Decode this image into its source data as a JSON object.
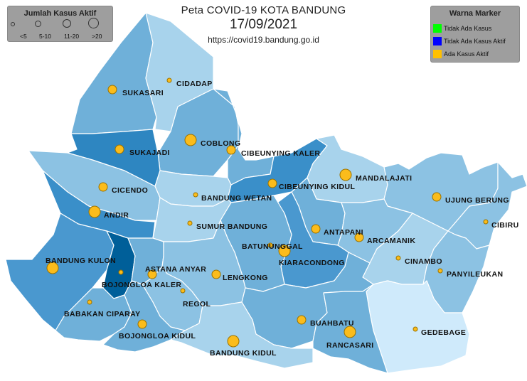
{
  "header": {
    "title": "Peta COVID-19 KOTA BANDUNG",
    "date": "17/09/2021",
    "url": "https://covid19.bandung.go.id"
  },
  "legend_size": {
    "title": "Jumlah Kasus Aktif",
    "items": [
      "<5",
      "5-10",
      "11-20",
      ">20"
    ]
  },
  "legend_color": {
    "title": "Warna Marker",
    "items": [
      {
        "label": "Tidak Ada Kasus",
        "color": "#00ff00"
      },
      {
        "label": "Tidak Ada Kasus Aktif",
        "color": "#0000ff"
      },
      {
        "label": "Ada Kasus Aktif",
        "color": "#ffc000"
      }
    ]
  },
  "colors": {
    "marker_fill": "#fbbc1b",
    "marker_stroke": "#9a7200",
    "map_border": "#ffffff"
  },
  "districts": [
    {
      "name": "SUKASARI",
      "size": "5-10"
    },
    {
      "name": "CIDADAP",
      "size": "<5"
    },
    {
      "name": "COBLONG",
      "size": "11-20"
    },
    {
      "name": "SUKAJADI",
      "size": "5-10"
    },
    {
      "name": "CIBEUNYING KALER",
      "size": "5-10"
    },
    {
      "name": "CICENDO",
      "size": "5-10"
    },
    {
      "name": "BANDUNG WETAN",
      "size": "<5"
    },
    {
      "name": "CIBEUNYING KIDUL",
      "size": "5-10"
    },
    {
      "name": "MANDALAJATI",
      "size": "11-20"
    },
    {
      "name": "ANDIR",
      "size": "11-20"
    },
    {
      "name": "SUMUR BANDUNG",
      "size": "<5"
    },
    {
      "name": "UJUNG BERUNG",
      "size": "5-10"
    },
    {
      "name": "CIBIRU",
      "size": "<5"
    },
    {
      "name": "ANTAPANI",
      "size": "5-10"
    },
    {
      "name": "ARCAMANIK",
      "size": "5-10"
    },
    {
      "name": "BATUNUNGGAL",
      "size": "<5"
    },
    {
      "name": "KIARACONDONG",
      "size": "11-20"
    },
    {
      "name": "BANDUNG KULON",
      "size": "11-20"
    },
    {
      "name": "ASTANA ANYAR",
      "size": "5-10"
    },
    {
      "name": "BOJONGLOA KALER",
      "size": "<5"
    },
    {
      "name": "LENGKONG",
      "size": "5-10"
    },
    {
      "name": "CINAMBO",
      "size": "<5"
    },
    {
      "name": "PANYILEUKAN",
      "size": "<5"
    },
    {
      "name": "REGOL",
      "size": "<5"
    },
    {
      "name": "BABAKAN CIPARAY",
      "size": "<5"
    },
    {
      "name": "BUAHBATU",
      "size": "5-10"
    },
    {
      "name": "BOJONGLOA KIDUL",
      "size": "5-10"
    },
    {
      "name": "GEDEBAGE",
      "size": "<5"
    },
    {
      "name": "RANCASARI",
      "size": "11-20"
    },
    {
      "name": "BANDUNG KIDUL",
      "size": "11-20"
    }
  ]
}
